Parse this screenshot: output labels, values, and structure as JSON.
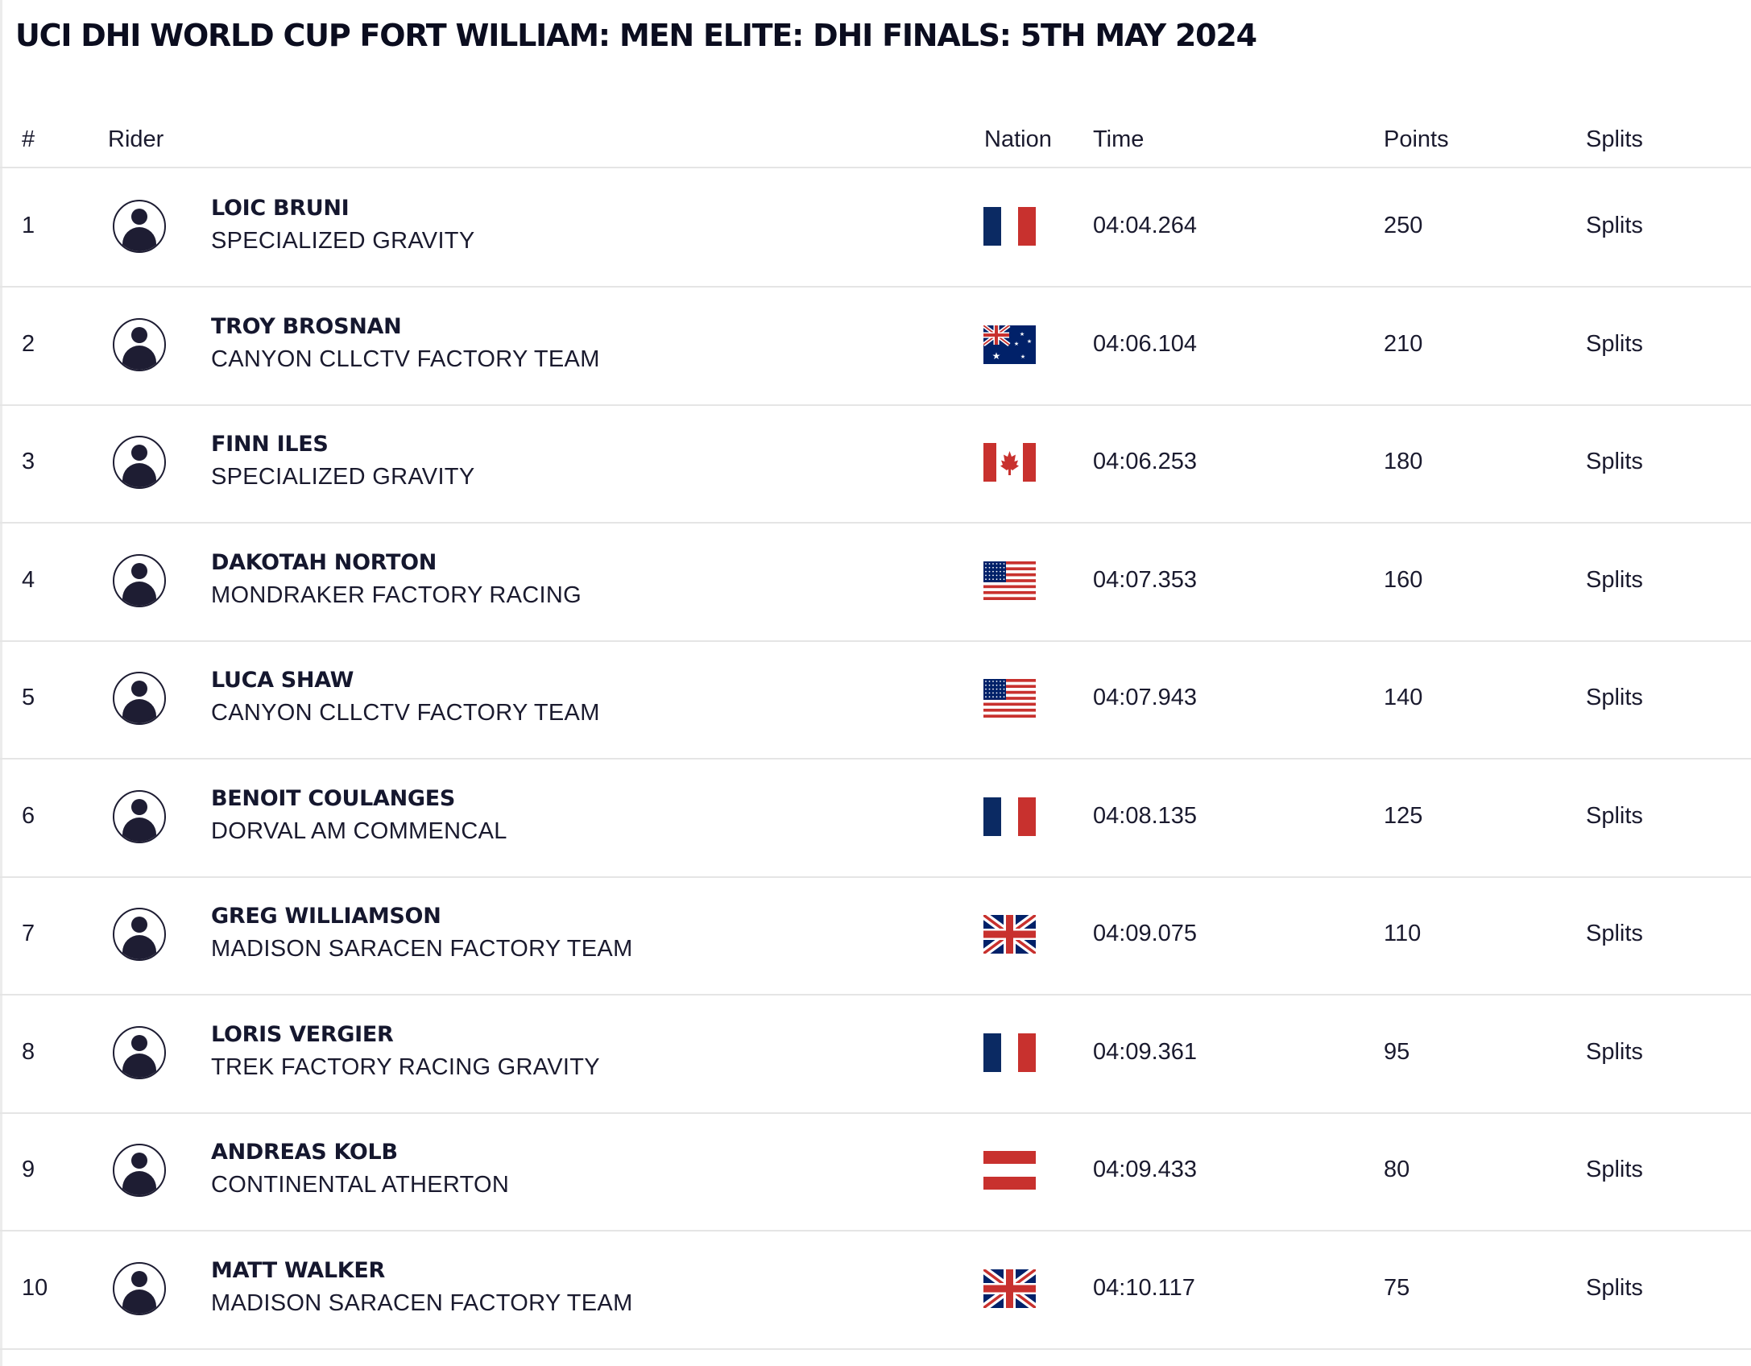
{
  "page": {
    "title": "UCI DHI WORLD CUP FORT WILLIAM: MEN ELITE: DHI FINALS: 5TH MAY 2024"
  },
  "table": {
    "headers": {
      "pos": "#",
      "rider": "Rider",
      "nation": "Nation",
      "time": "Time",
      "points": "Points",
      "splits": "Splits"
    },
    "rows": [
      {
        "pos": "1",
        "name": "LOIC BRUNI",
        "team": "SPECIALIZED GRAVITY",
        "nation": "france-flag",
        "time": "04:04.264",
        "points": "250",
        "splits": "Splits"
      },
      {
        "pos": "2",
        "name": "TROY BROSNAN",
        "team": "CANYON CLLCTV FACTORY TEAM",
        "nation": "australia-flag",
        "time": "04:06.104",
        "points": "210",
        "splits": "Splits"
      },
      {
        "pos": "3",
        "name": "FINN ILES",
        "team": "SPECIALIZED GRAVITY",
        "nation": "canada-flag",
        "time": "04:06.253",
        "points": "180",
        "splits": "Splits"
      },
      {
        "pos": "4",
        "name": "DAKOTAH NORTON",
        "team": "MONDRAKER FACTORY RACING",
        "nation": "usa-flag",
        "time": "04:07.353",
        "points": "160",
        "splits": "Splits"
      },
      {
        "pos": "5",
        "name": "LUCA SHAW",
        "team": "CANYON CLLCTV FACTORY TEAM",
        "nation": "usa-flag",
        "time": "04:07.943",
        "points": "140",
        "splits": "Splits"
      },
      {
        "pos": "6",
        "name": "BENOIT COULANGES",
        "team": "DORVAL AM COMMENCAL",
        "nation": "france-flag",
        "time": "04:08.135",
        "points": "125",
        "splits": "Splits"
      },
      {
        "pos": "7",
        "name": "GREG WILLIAMSON",
        "team": "MADISON SARACEN FACTORY TEAM",
        "nation": "uk-flag",
        "time": "04:09.075",
        "points": "110",
        "splits": "Splits"
      },
      {
        "pos": "8",
        "name": "LORIS VERGIER",
        "team": "TREK FACTORY RACING GRAVITY",
        "nation": "france-flag",
        "time": "04:09.361",
        "points": "95",
        "splits": "Splits"
      },
      {
        "pos": "9",
        "name": "ANDREAS KOLB",
        "team": "CONTINENTAL ATHERTON",
        "nation": "austria-flag",
        "time": "04:09.433",
        "points": "80",
        "splits": "Splits"
      },
      {
        "pos": "10",
        "name": "MATT WALKER",
        "team": "MADISON SARACEN FACTORY TEAM",
        "nation": "uk-flag",
        "time": "04:10.117",
        "points": "75",
        "splits": "Splits"
      }
    ]
  },
  "colors": {
    "text": "#1a1a2e",
    "divider": "#e5e5e5",
    "avatar": "#1e1d33",
    "flag_blue": "#0b2a63",
    "flag_red": "#c8312e",
    "flag_white": "#ffffff",
    "flag_navy": "#012169"
  }
}
